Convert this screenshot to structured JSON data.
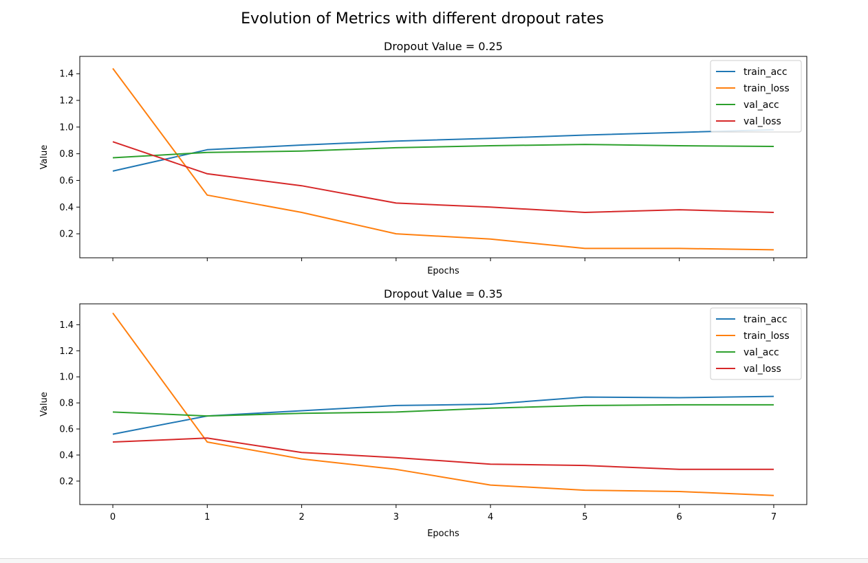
{
  "suptitle": "Evolution of Metrics with different dropout rates",
  "colors": {
    "train_acc": "#1f77b4",
    "train_loss": "#ff7f0e",
    "val_acc": "#2ca02c",
    "val_loss": "#d62728"
  },
  "chart_data": [
    {
      "type": "line",
      "title": "Dropout Value = 0.25",
      "xlabel": "Epochs",
      "ylabel": "Value",
      "x": [
        0,
        1,
        2,
        3,
        4,
        5,
        6,
        7
      ],
      "xlim": [
        -0.35,
        7.35
      ],
      "ylim": [
        0.02,
        1.53
      ],
      "xticks": [
        0,
        1,
        2,
        3,
        4,
        5,
        6,
        7
      ],
      "show_xtick_labels": false,
      "yticks": [
        0.2,
        0.4,
        0.6,
        0.8,
        1.0,
        1.2,
        1.4
      ],
      "ytick_labels": [
        "0.2",
        "0.4",
        "0.6",
        "0.8",
        "1.0",
        "1.2",
        "1.4"
      ],
      "grid": false,
      "legend": "top-right",
      "series": [
        {
          "name": "train_acc",
          "values": [
            0.67,
            0.83,
            0.865,
            0.895,
            0.915,
            0.94,
            0.96,
            0.98
          ]
        },
        {
          "name": "train_loss",
          "values": [
            1.44,
            0.49,
            0.36,
            0.2,
            0.16,
            0.09,
            0.09,
            0.08
          ]
        },
        {
          "name": "val_acc",
          "values": [
            0.77,
            0.81,
            0.82,
            0.845,
            0.86,
            0.87,
            0.86,
            0.855
          ]
        },
        {
          "name": "val_loss",
          "values": [
            0.89,
            0.65,
            0.56,
            0.43,
            0.4,
            0.36,
            0.38,
            0.36
          ]
        }
      ]
    },
    {
      "type": "line",
      "title": "Dropout Value = 0.35",
      "xlabel": "Epochs",
      "ylabel": "Value",
      "x": [
        0,
        1,
        2,
        3,
        4,
        5,
        6,
        7
      ],
      "xlim": [
        -0.35,
        7.35
      ],
      "ylim": [
        0.02,
        1.56
      ],
      "xticks": [
        0,
        1,
        2,
        3,
        4,
        5,
        6,
        7
      ],
      "xtick_labels": [
        "0",
        "1",
        "2",
        "3",
        "4",
        "5",
        "6",
        "7"
      ],
      "show_xtick_labels": true,
      "yticks": [
        0.2,
        0.4,
        0.6,
        0.8,
        1.0,
        1.2,
        1.4
      ],
      "ytick_labels": [
        "0.2",
        "0.4",
        "0.6",
        "0.8",
        "1.0",
        "1.2",
        "1.4"
      ],
      "grid": false,
      "legend": "top-right",
      "series": [
        {
          "name": "train_acc",
          "values": [
            0.56,
            0.7,
            0.74,
            0.78,
            0.79,
            0.845,
            0.84,
            0.85
          ]
        },
        {
          "name": "train_loss",
          "values": [
            1.49,
            0.5,
            0.37,
            0.29,
            0.17,
            0.13,
            0.12,
            0.09
          ]
        },
        {
          "name": "val_acc",
          "values": [
            0.73,
            0.7,
            0.72,
            0.73,
            0.76,
            0.78,
            0.785,
            0.785
          ]
        },
        {
          "name": "val_loss",
          "values": [
            0.5,
            0.53,
            0.42,
            0.38,
            0.33,
            0.32,
            0.29,
            0.29
          ]
        }
      ]
    }
  ]
}
